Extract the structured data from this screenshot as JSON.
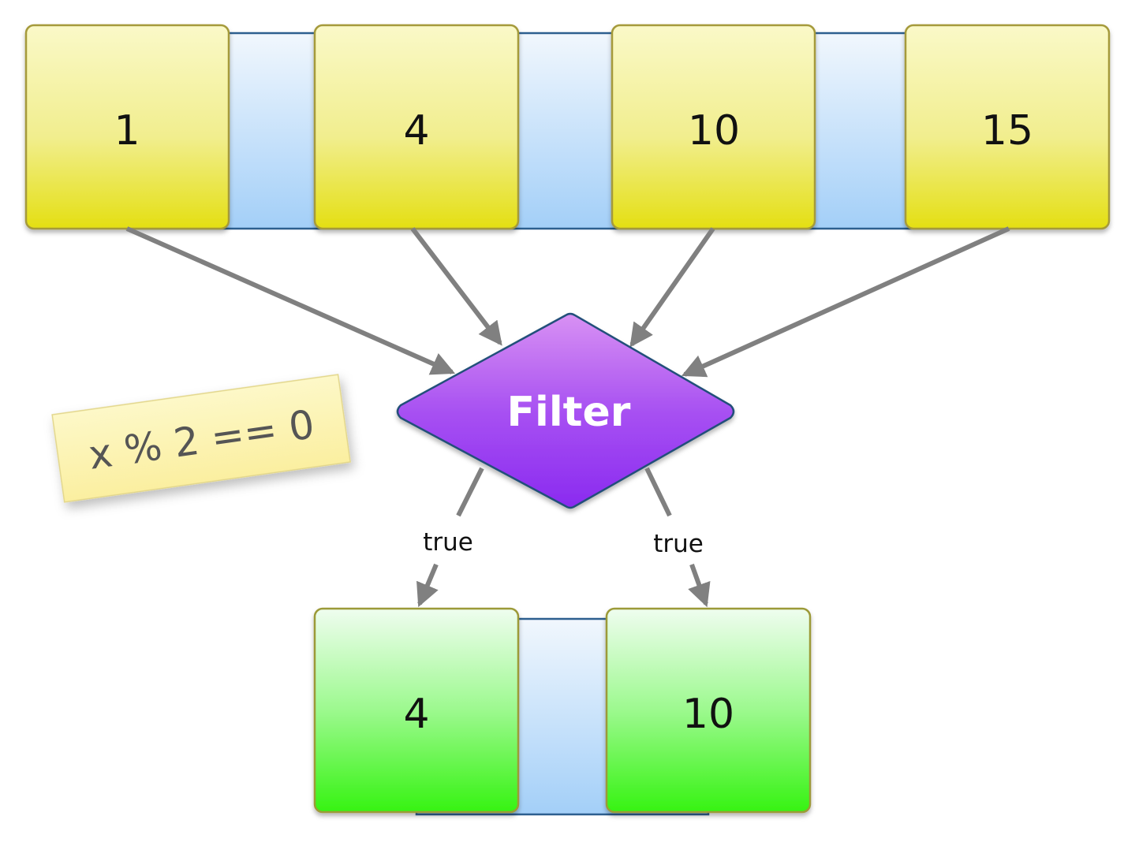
{
  "input_list": {
    "items": [
      "1",
      "4",
      "10",
      "15"
    ]
  },
  "filter": {
    "label": "Filter",
    "predicate": "x % 2 == 0"
  },
  "edges": {
    "true_left": "true",
    "true_right": "true"
  },
  "output_list": {
    "items": [
      "4",
      "10"
    ]
  },
  "colors": {
    "input_box_top": "#faf9c8",
    "input_box_bottom": "#e6e21a",
    "output_box_top": "#effdef",
    "output_box_bottom": "#3af518",
    "filter_top": "#d48cf2",
    "filter_bottom": "#8b2cf0",
    "connector_top": "#eef5fd",
    "connector_bottom": "#a7d2f8",
    "arrow": "#808080",
    "note": "#fdf6b5"
  }
}
